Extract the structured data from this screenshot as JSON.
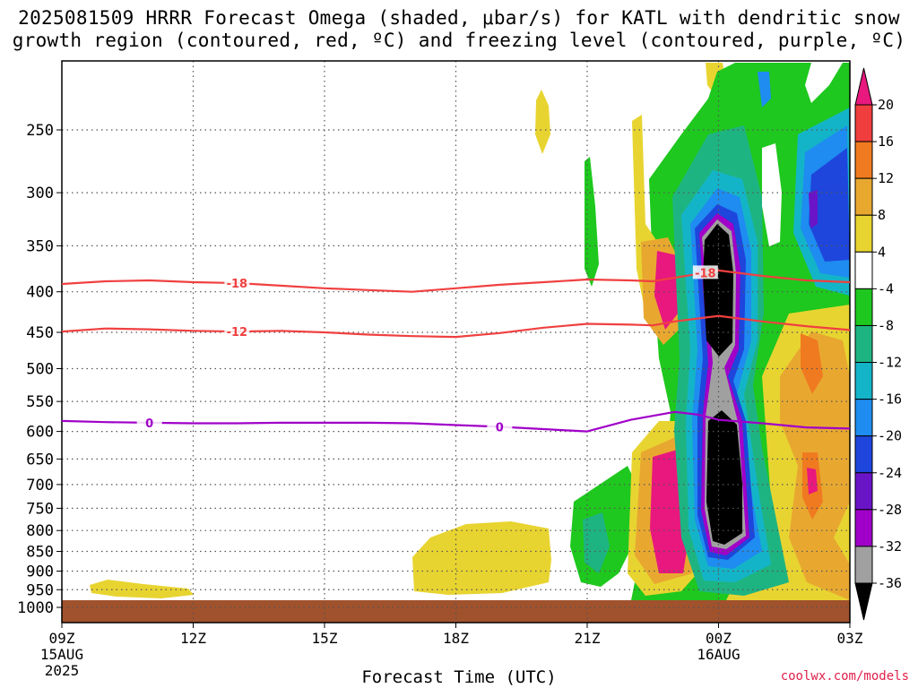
{
  "title_line1": "2025081509 HRRR Forecast Omega (shaded, μbar/s) for KATL with dendritic snow",
  "title_line2": "growth region (contoured, red, ºC) and freezing level (contoured, purple, ºC)",
  "x_axis_title": "Forecast Time (UTC)",
  "credit": "coolwx.com/models",
  "chart_data": {
    "type": "heatmap",
    "title": "2025081509 HRRR Forecast Omega (shaded, μbar/s) for KATL with dendritic snow growth region (contoured, red, ºC) and freezing level (contoured, purple, ºC)",
    "xlabel": "Forecast Time (UTC)",
    "ylabel": "",
    "x_hours": [
      0,
      3,
      6,
      9,
      12,
      15,
      18
    ],
    "x_ticks": [
      {
        "hour": 0,
        "label": "09Z",
        "sub1": "15AUG",
        "sub2": "2025"
      },
      {
        "hour": 3,
        "label": "12Z",
        "sub1": "",
        "sub2": ""
      },
      {
        "hour": 6,
        "label": "15Z",
        "sub1": "",
        "sub2": ""
      },
      {
        "hour": 9,
        "label": "18Z",
        "sub1": "",
        "sub2": ""
      },
      {
        "hour": 12,
        "label": "21Z",
        "sub1": "",
        "sub2": ""
      },
      {
        "hour": 15,
        "label": "00Z",
        "sub1": "16AUG",
        "sub2": ""
      },
      {
        "hour": 18,
        "label": "03Z",
        "sub1": "",
        "sub2": ""
      }
    ],
    "y_axis": "pressure (hPa), log scale, reversed",
    "ylim": [
      1000,
      200
    ],
    "y_ticks": [
      250,
      300,
      350,
      400,
      450,
      500,
      550,
      600,
      650,
      700,
      750,
      800,
      850,
      900,
      950,
      1000
    ],
    "grid": true,
    "surface_fill_color": "#a0522d",
    "colorbar": {
      "labels": [
        "20",
        "16",
        "12",
        "8",
        "4",
        "-4",
        "-8",
        "-12",
        "-16",
        "-20",
        "-24",
        "-28",
        "-32",
        "-36"
      ],
      "colors": [
        "#e8187e",
        "#f03e3e",
        "#f07a20",
        "#e8a830",
        "#e8d430",
        "#ffffff",
        "#1ec81e",
        "#1eb482",
        "#14b4c8",
        "#1e8cf0",
        "#1e46dc",
        "#6a14c8",
        "#a000c8",
        "#a0a0a0",
        "#000000"
      ]
    },
    "contours": [
      {
        "label": "-18",
        "color": "#f04040",
        "label_hours": [
          4,
          14.7
        ],
        "points": [
          [
            0,
            391
          ],
          [
            1,
            388
          ],
          [
            2,
            387
          ],
          [
            3,
            389
          ],
          [
            4,
            390
          ],
          [
            5,
            393
          ],
          [
            6,
            396
          ],
          [
            7,
            398
          ],
          [
            8,
            400
          ],
          [
            9,
            396
          ],
          [
            10,
            392
          ],
          [
            11,
            389
          ],
          [
            12,
            386
          ],
          [
            13,
            387
          ],
          [
            13.5,
            388
          ],
          [
            14,
            384
          ],
          [
            15,
            376
          ],
          [
            16,
            382
          ],
          [
            17,
            387
          ],
          [
            18,
            389
          ]
        ]
      },
      {
        "label": "-12",
        "color": "#f04040",
        "label_hours": [
          4
        ],
        "points": [
          [
            0,
            449
          ],
          [
            1,
            445
          ],
          [
            2,
            446
          ],
          [
            3,
            448
          ],
          [
            4,
            449
          ],
          [
            5,
            448
          ],
          [
            6,
            450
          ],
          [
            7,
            453
          ],
          [
            8,
            455
          ],
          [
            9,
            456
          ],
          [
            10,
            451
          ],
          [
            11,
            444
          ],
          [
            12,
            439
          ],
          [
            13,
            440
          ],
          [
            13.5,
            441
          ],
          [
            14,
            436
          ],
          [
            15,
            429
          ],
          [
            16,
            436
          ],
          [
            17,
            442
          ],
          [
            18,
            447
          ]
        ]
      },
      {
        "label": "0",
        "color": "#a000c8",
        "label_hours": [
          2,
          10
        ],
        "points": [
          [
            0,
            582
          ],
          [
            1,
            584
          ],
          [
            2,
            585
          ],
          [
            3,
            586
          ],
          [
            4,
            586
          ],
          [
            5,
            585
          ],
          [
            6,
            585
          ],
          [
            7,
            585
          ],
          [
            8,
            586
          ],
          [
            9,
            589
          ],
          [
            10,
            592
          ],
          [
            11,
            596
          ],
          [
            12,
            600
          ],
          [
            13,
            580
          ],
          [
            14,
            567
          ],
          [
            14.5,
            571
          ],
          [
            15,
            580
          ],
          [
            16,
            586
          ],
          [
            17,
            593
          ],
          [
            18,
            595
          ]
        ]
      }
    ]
  }
}
